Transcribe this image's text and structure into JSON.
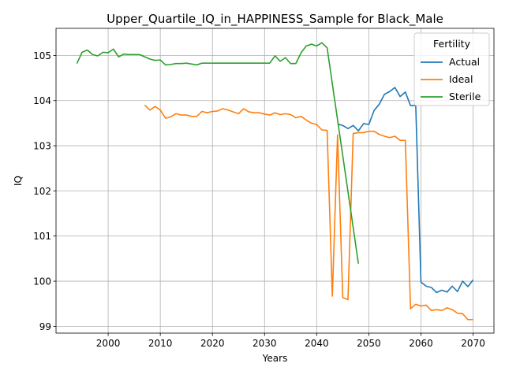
{
  "chart_data": {
    "type": "line",
    "title": "Upper_Quartile_IQ_in_HAPPINESS_Sample for Black_Male",
    "xlabel": "Years",
    "ylabel": "IQ",
    "xlim": [
      1990,
      2074
    ],
    "ylim": [
      98.85,
      105.6
    ],
    "xticks": [
      2000,
      2010,
      2020,
      2030,
      2040,
      2050,
      2060,
      2070
    ],
    "yticks": [
      99,
      100,
      101,
      102,
      103,
      104,
      105
    ],
    "grid": true,
    "legend": {
      "title": "Fertility",
      "placement": "top-right"
    },
    "series": [
      {
        "name": "Actual",
        "color": "#1f77b4",
        "x": [
          2044,
          2045,
          2046,
          2047,
          2048,
          2049,
          2050,
          2051,
          2052,
          2053,
          2054,
          2055,
          2056,
          2057,
          2058,
          2059,
          2060,
          2061,
          2062,
          2063,
          2064,
          2065,
          2066,
          2067,
          2068,
          2069,
          2070
        ],
        "y": [
          103.48,
          103.45,
          103.38,
          103.45,
          103.33,
          103.49,
          103.47,
          103.78,
          103.92,
          104.14,
          104.2,
          104.29,
          104.09,
          104.19,
          103.89,
          103.89,
          99.98,
          99.89,
          99.86,
          99.75,
          99.8,
          99.76,
          99.89,
          99.77,
          100.0,
          99.88,
          100.03
        ]
      },
      {
        "name": "Ideal",
        "color": "#ff7f0e",
        "x": [
          2007,
          2008,
          2009,
          2010,
          2011,
          2012,
          2013,
          2014,
          2015,
          2016,
          2017,
          2018,
          2019,
          2020,
          2021,
          2022,
          2023,
          2024,
          2025,
          2026,
          2027,
          2028,
          2029,
          2030,
          2031,
          2032,
          2033,
          2034,
          2035,
          2036,
          2037,
          2038,
          2039,
          2040,
          2041,
          2042,
          2043,
          2044,
          2045,
          2046,
          2047,
          2048,
          2049,
          2050,
          2051,
          2052,
          2053,
          2054,
          2055,
          2056,
          2057,
          2058,
          2059,
          2060,
          2061,
          2062,
          2063,
          2064,
          2065,
          2066,
          2067,
          2068,
          2069,
          2070
        ],
        "y": [
          103.9,
          103.79,
          103.87,
          103.79,
          103.61,
          103.64,
          103.71,
          103.68,
          103.68,
          103.65,
          103.65,
          103.76,
          103.73,
          103.76,
          103.77,
          103.82,
          103.79,
          103.75,
          103.71,
          103.82,
          103.75,
          103.73,
          103.73,
          103.7,
          103.68,
          103.73,
          103.69,
          103.71,
          103.69,
          103.62,
          103.65,
          103.57,
          103.5,
          103.47,
          103.35,
          103.34,
          99.67,
          103.24,
          99.64,
          99.59,
          103.27,
          103.29,
          103.29,
          103.32,
          103.32,
          103.25,
          103.21,
          103.18,
          103.21,
          103.12,
          103.12,
          99.39,
          99.49,
          99.45,
          99.47,
          99.35,
          99.37,
          99.35,
          99.41,
          99.37,
          99.29,
          99.28,
          99.15,
          99.15
        ]
      },
      {
        "name": "Sterile",
        "color": "#2ca02c",
        "x": [
          1994,
          1995,
          1996,
          1997,
          1998,
          1999,
          2000,
          2001,
          2002,
          2003,
          2004,
          2005,
          2006,
          2007,
          2008,
          2009,
          2010,
          2011,
          2012,
          2013,
          2014,
          2015,
          2016,
          2017,
          2018,
          2019,
          2020,
          2021,
          2022,
          2023,
          2024,
          2025,
          2026,
          2027,
          2028,
          2029,
          2030,
          2031,
          2032,
          2033,
          2034,
          2035,
          2036,
          2037,
          2038,
          2039,
          2040,
          2041,
          2042,
          2048
        ],
        "y": [
          104.82,
          105.07,
          105.12,
          105.02,
          104.99,
          105.07,
          105.06,
          105.14,
          104.97,
          105.03,
          105.02,
          105.02,
          105.02,
          104.97,
          104.92,
          104.89,
          104.9,
          104.79,
          104.8,
          104.82,
          104.82,
          104.83,
          104.81,
          104.79,
          104.83,
          104.83,
          104.83,
          104.83,
          104.83,
          104.83,
          104.83,
          104.83,
          104.83,
          104.83,
          104.83,
          104.83,
          104.83,
          104.83,
          104.99,
          104.87,
          104.95,
          104.82,
          104.82,
          105.06,
          105.21,
          105.25,
          105.21,
          105.28,
          105.17,
          100.39
        ]
      }
    ]
  }
}
